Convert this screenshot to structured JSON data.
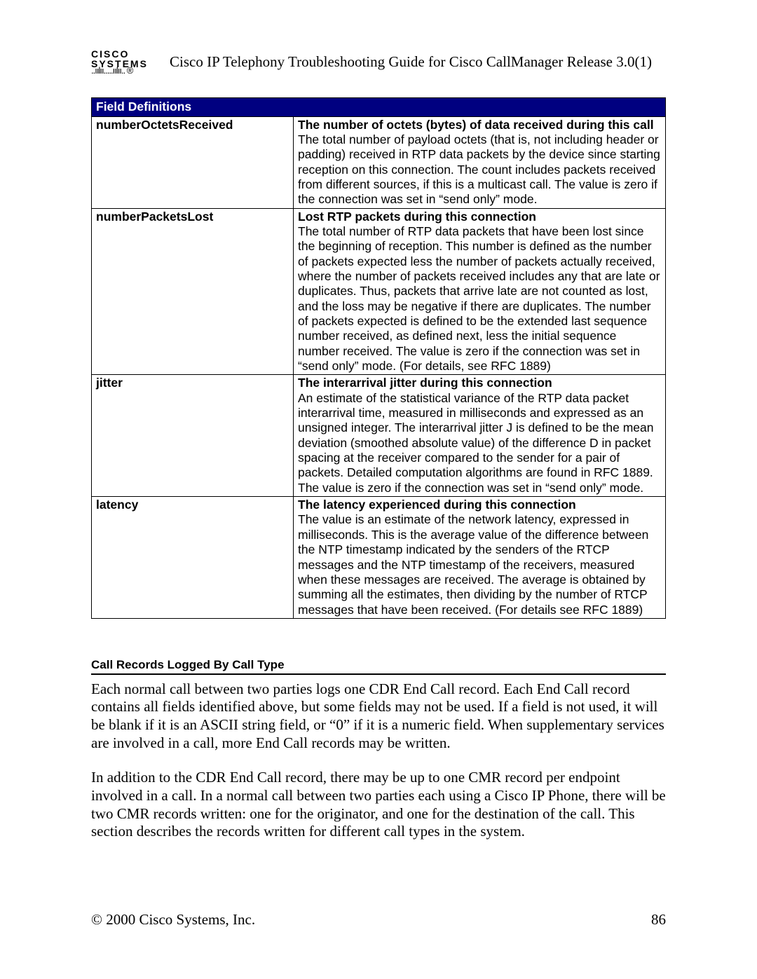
{
  "logo": {
    "text": "CISCO SYSTEMS",
    "bridge": "..ıılıı.....ıılıı.. ®"
  },
  "header": {
    "title": "Cisco IP Telephony Troubleshooting Guide for Cisco CallManager Release 3.0(1)"
  },
  "table": {
    "header": "Field Definitions",
    "rows": [
      {
        "name": "numberOctetsReceived",
        "desc_title": "The number of octets (bytes) of data received during this call",
        "desc_body": "The total number of payload octets (that is, not including header or padding) received in RTP data packets by the device since starting reception on this connection. The count includes packets received from different sources, if this is a multicast call. The value is zero if the connection was set in “send only”  mode."
      },
      {
        "name": "numberPacketsLost",
        "desc_title": "Lost RTP packets during this connection",
        "desc_body": "The total number of RTP data packets that have been lost since the beginning of reception. This number is defined as the number of packets expected less the number of packets actually received, where the number of packets received includes any that are late or duplicates. Thus, packets that arrive late are not counted as lost, and the loss may be negative if there are duplicates. The number of packets expected is defined to be the extended last sequence number received, as defined next, less the initial sequence number received. The value is zero if the connection was set in “send only” mode. (For details, see RFC 1889)"
      },
      {
        "name": "jitter",
        "desc_title": "The interarrival jitter during this connection",
        "desc_body": "An estimate of the statistical variance of the RTP data packet interarrival time, measured in milliseconds and expressed as an unsigned integer. The interarrival jitter J is defined to be the mean deviation (smoothed absolute value) of the difference D in packet spacing at the receiver compared to the sender for a pair of packets. Detailed computation algorithms are found in RFC 1889. The value is zero if the connection was set in “send only”  mode."
      },
      {
        "name": "latency",
        "desc_title": "The latency experienced during this connection",
        "desc_body": "The value is an estimate of the network latency, expressed in milliseconds. This is the average value of the difference between the NTP timestamp indicated by the senders of the RTCP messages and the NTP timestamp of the receivers, measured when these messages are received. The average is obtained by summing all the estimates, then dividing by the number of RTCP messages that have been received. (For details see RFC 1889)"
      }
    ]
  },
  "section": {
    "heading": "Call Records Logged By Call Type",
    "p1": "Each normal call between two parties logs one CDR End Call record. Each End Call record contains all fields identified above, but some fields may not be used. If a field is not used, it will be blank if it is an ASCII string field, or “0” if it is a numeric field. When supplementary services are involved in a call, more End Call records may be written.",
    "p2": "In addition to the CDR End Call record, there may be up to one CMR record per endpoint involved in a call. In a normal call between two parties each using a Cisco IP Phone, there will be two CMR records written: one for the originator, and one for the destination of the call. This section describes the records written for different call types in the system."
  },
  "footer": {
    "copyright": "© 2000 Cisco Systems, Inc.",
    "page": "86"
  }
}
